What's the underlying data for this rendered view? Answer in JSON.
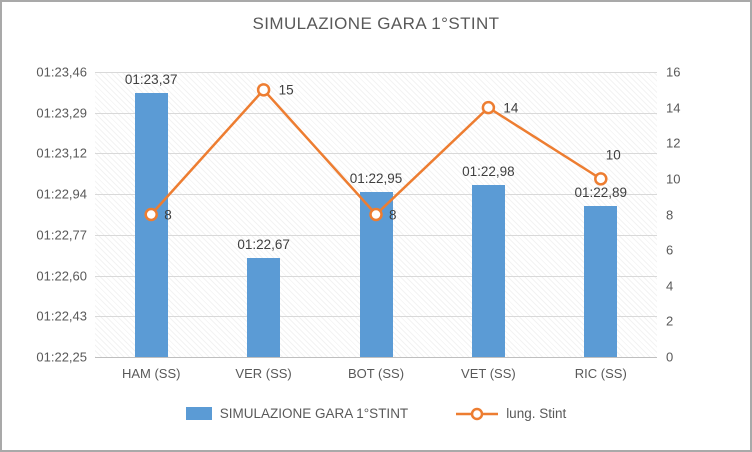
{
  "chart_data": {
    "type": "bar+line",
    "title": "SIMULAZIONE GARA 1°STINT",
    "categories": [
      "HAM (SS)",
      "VER (SS)",
      "BOT (SS)",
      "VET (SS)",
      "RIC (SS)"
    ],
    "series": [
      {
        "name": "SIMULAZIONE GARA 1°STINT",
        "type": "bar",
        "axis": "left",
        "color": "#5B9BD5",
        "values": [
          83.37,
          82.67,
          82.95,
          82.98,
          82.89
        ],
        "labels": [
          "01:23,37",
          "01:22,67",
          "01:22,95",
          "01:22,98",
          "01:22,89"
        ]
      },
      {
        "name": "lung. Stint",
        "type": "line",
        "axis": "right",
        "color": "#ED7D31",
        "values": [
          8,
          15,
          8,
          14,
          10
        ],
        "labels": [
          "8",
          "15",
          "8",
          "14",
          "10"
        ],
        "label_offsets": [
          [
            13,
            0
          ],
          [
            15,
            0
          ],
          [
            13,
            0
          ],
          [
            15,
            0
          ],
          [
            5,
            -24
          ]
        ]
      }
    ],
    "left_axis": {
      "min": 82.25,
      "max": 83.46,
      "tick_labels": [
        "01:23,46",
        "01:23,29",
        "01:23,12",
        "01:22,94",
        "01:22,77",
        "01:22,60",
        "01:22,43",
        "01:22,25"
      ]
    },
    "right_axis": {
      "min": 0,
      "max": 16,
      "tick_labels": [
        "16",
        "14",
        "12",
        "10",
        "8",
        "6",
        "4",
        "2",
        "0"
      ]
    },
    "legend_position": "bottom",
    "grid": "horizontal"
  },
  "colors": {
    "bar": "#5B9BD5",
    "line": "#ED7D31",
    "grid": "#D9D9D9",
    "axis_text": "#595959",
    "label_text": "#3F3F3F",
    "frame_border": "#A9A9A9"
  }
}
